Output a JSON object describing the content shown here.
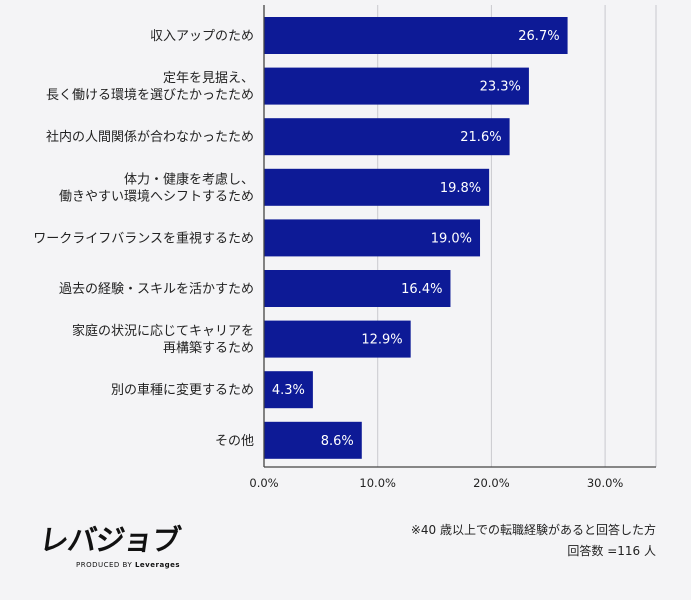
{
  "chart_data": {
    "type": "bar",
    "orientation": "horizontal",
    "categories": [
      [
        "収入アップのため"
      ],
      [
        "定年を見据え、",
        "長く働ける環境を選びたかったため"
      ],
      [
        "社内の人間関係が合わなかったため"
      ],
      [
        "体力・健康を考慮し、",
        "働きやすい環境へシフトするため"
      ],
      [
        "ワークライフバランスを重視するため"
      ],
      [
        "過去の経験・スキルを活かすため"
      ],
      [
        "家庭の状況に応じてキャリアを",
        "再構築するため"
      ],
      [
        "別の車種に変更するため"
      ],
      [
        "その他"
      ]
    ],
    "values": [
      26.7,
      23.3,
      21.6,
      19.8,
      19.0,
      16.4,
      12.9,
      4.3,
      8.6
    ],
    "value_labels": [
      "26.7%",
      "23.3%",
      "21.6%",
      "19.8%",
      "19.0%",
      "16.4%",
      "12.9%",
      "4.3%",
      "8.6%"
    ],
    "xlim": [
      0,
      35
    ],
    "x_ticks": [
      0,
      10,
      20,
      30
    ],
    "x_tick_labels": [
      "0.0%",
      "10.0%",
      "20.0%",
      "30.0%"
    ],
    "grid": "vertical",
    "title": "",
    "xlabel": "",
    "ylabel": ""
  },
  "colors": {
    "bar": "#0d1a96",
    "grid": "#c9c9cf",
    "axis": "#444444",
    "background": "#f4f4f6"
  },
  "logo": {
    "text": "レバジョブ",
    "sub_prefix": "PRODUCED BY",
    "sub_brand": "Leverages"
  },
  "footnote": {
    "line1": "※40 歳以上での転職経験があると回答した方",
    "line2": "回答数 =116 人"
  }
}
